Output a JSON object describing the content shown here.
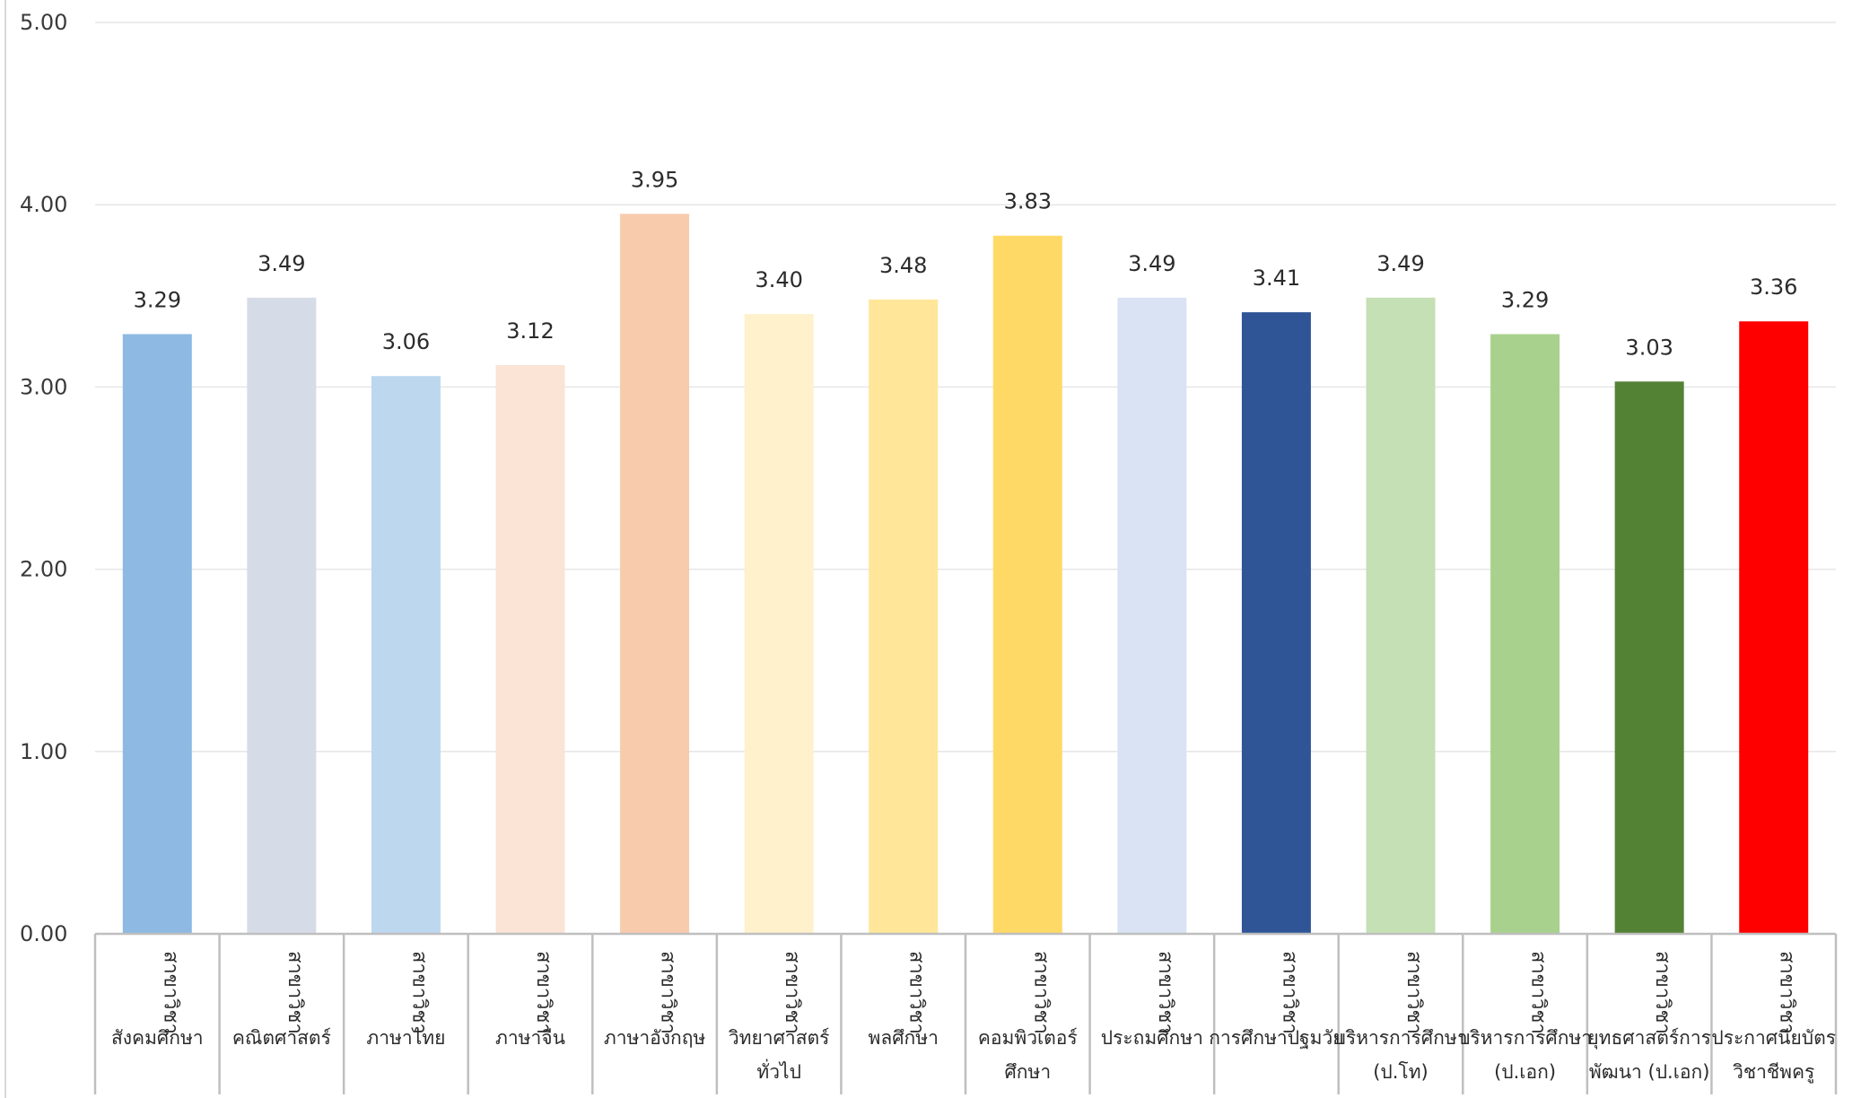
{
  "chart_data": {
    "type": "bar",
    "title": "",
    "xlabel": "",
    "ylabel": "",
    "ylim": [
      0,
      5
    ],
    "yticks": [
      "0.00",
      "1.00",
      "2.00",
      "3.00",
      "4.00",
      "5.00"
    ],
    "grid": true,
    "legend": "none",
    "category_prefix": "สาขาวิชา",
    "categories": [
      [
        "สังคมศึกษา"
      ],
      [
        "คณิตศาสตร์"
      ],
      [
        "ภาษาไทย"
      ],
      [
        "ภาษาจีน"
      ],
      [
        "ภาษาอังกฤษ"
      ],
      [
        "วิทยาศาสตร์",
        "ทั่วไป"
      ],
      [
        "พลศึกษา"
      ],
      [
        "คอมพิวเตอร์",
        "ศึกษา"
      ],
      [
        "ประถมศึกษา"
      ],
      [
        "การศึกษาปฐมวัย"
      ],
      [
        "บริหารการศึกษา",
        "(ป.โท)"
      ],
      [
        "บริหารการศึกษา",
        "(ป.เอก)"
      ],
      [
        "ยุทธศาสตร์การ",
        "พัฒนา (ป.เอก)"
      ],
      [
        "ประกาศนียบัตร",
        "วิชาชีพครู"
      ]
    ],
    "values": [
      3.29,
      3.49,
      3.06,
      3.12,
      3.95,
      3.4,
      3.48,
      3.83,
      3.49,
      3.41,
      3.49,
      3.29,
      3.03,
      3.36
    ],
    "value_labels": [
      "3.29",
      "3.49",
      "3.06",
      "3.12",
      "3.95",
      "3.40",
      "3.48",
      "3.83",
      "3.49",
      "3.41",
      "3.49",
      "3.29",
      "3.03",
      "3.36"
    ],
    "colors": [
      "#8db9e2",
      "#d5dce8",
      "#bdd7ee",
      "#fbe3d5",
      "#f8cbad",
      "#fff1cc",
      "#ffe699",
      "#ffd966",
      "#dae3f3",
      "#2f5597",
      "#c5e0b4",
      "#a9d18e",
      "#548235",
      "#ff0000"
    ]
  }
}
